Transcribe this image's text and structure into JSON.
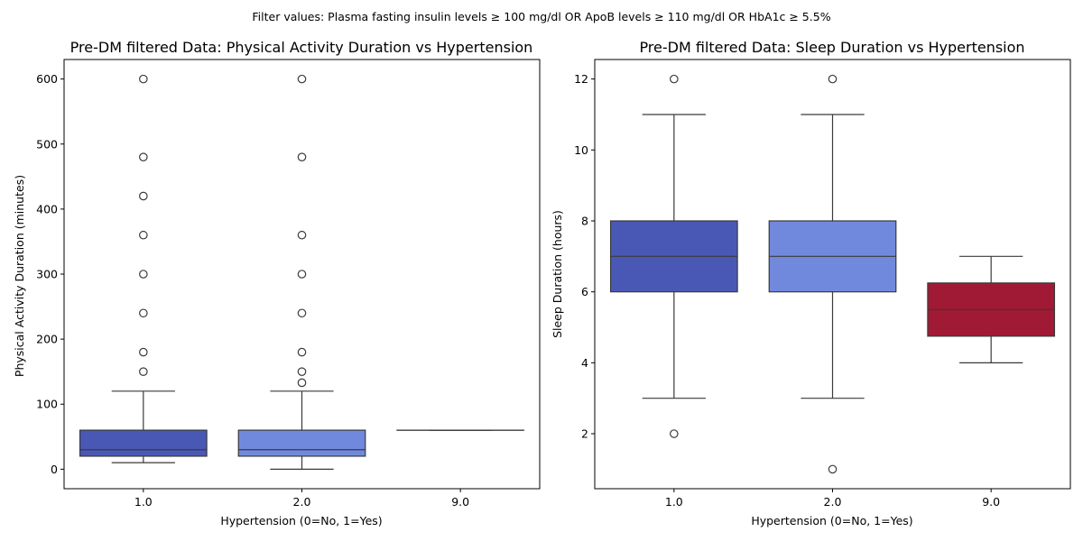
{
  "suptitle": "Filter values: Plasma fasting insulin levels ≥ 100 mg/dl OR ApoB levels ≥ 110 mg/dl OR HbA1c ≥ 5.5%",
  "chart_data": [
    {
      "type": "box",
      "title": "Pre-DM filtered Data: Physical Activity Duration vs Hypertension",
      "xlabel": "Hypertension (0=No, 1=Yes)",
      "ylabel": "Physical Activity Duration (minutes)",
      "categories": [
        "1.0",
        "2.0",
        "9.0"
      ],
      "ylim": [
        -30,
        630
      ],
      "yticks": [
        0,
        100,
        200,
        300,
        400,
        500,
        600
      ],
      "grid": false,
      "boxes": [
        {
          "category": "1.0",
          "color": "#4a58b5",
          "whislo": 10,
          "q1": 20,
          "med": 30,
          "q3": 60,
          "whishi": 120,
          "fliers": [
            150,
            180,
            240,
            300,
            360,
            420,
            480,
            600
          ]
        },
        {
          "category": "2.0",
          "color": "#7189dd",
          "whislo": 0,
          "q1": 20,
          "med": 30,
          "q3": 60,
          "whishi": 120,
          "fliers": [
            133,
            150,
            180,
            240,
            300,
            360,
            480,
            600
          ]
        },
        {
          "category": "9.0",
          "color": "#4a58b5",
          "whislo": 60,
          "q1": 60,
          "med": 60,
          "q3": 60,
          "whishi": 60,
          "fliers": []
        }
      ]
    },
    {
      "type": "box",
      "title": "Pre-DM filtered Data: Sleep Duration vs Hypertension",
      "xlabel": "Hypertension (0=No, 1=Yes)",
      "ylabel": "Sleep Duration (hours)",
      "categories": [
        "1.0",
        "2.0",
        "9.0"
      ],
      "ylim": [
        0.45,
        12.55
      ],
      "yticks": [
        2,
        4,
        6,
        8,
        10,
        12
      ],
      "grid": false,
      "boxes": [
        {
          "category": "1.0",
          "color": "#4a58b5",
          "whislo": 3,
          "q1": 6,
          "med": 7,
          "q3": 8,
          "whishi": 11,
          "fliers": [
            2,
            12
          ]
        },
        {
          "category": "2.0",
          "color": "#7189dd",
          "whislo": 3,
          "q1": 6,
          "med": 7,
          "q3": 8,
          "whishi": 11,
          "fliers": [
            1,
            12
          ]
        },
        {
          "category": "9.0",
          "color": "#a11a35",
          "whislo": 4,
          "q1": 4.75,
          "med": 5.5,
          "q3": 6.25,
          "whishi": 7,
          "fliers": []
        }
      ]
    }
  ]
}
